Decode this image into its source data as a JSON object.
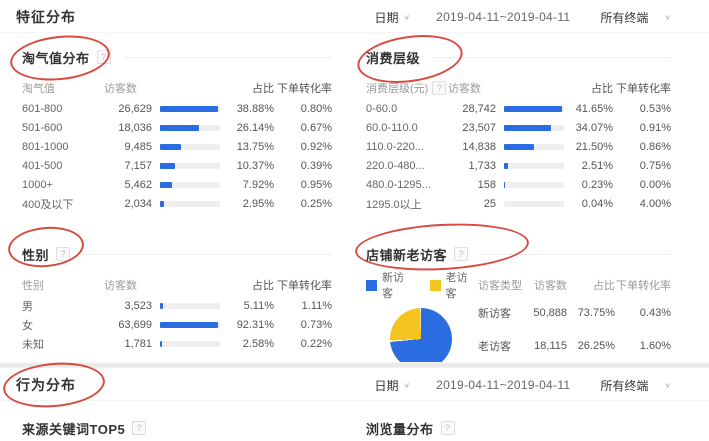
{
  "colors": {
    "blue": "#2a6de0",
    "yellow": "#f5c51f",
    "annotation_red": "#d3382b"
  },
  "feature": {
    "title": "特征分布",
    "date_label": "日期",
    "date_range": "2019-04-11~2019-04-11",
    "terminal": "所有终端",
    "panels": {
      "taoqi": {
        "title": "淘气值分布",
        "help": "?",
        "columns": {
          "c1": "淘气值",
          "c2": "访客数",
          "c3": "占比",
          "c4": "下单转化率"
        },
        "rows": [
          {
            "label": "601-800",
            "visitors": "26,629",
            "pct": "38.88%",
            "pct_value": 38.88,
            "conv": "0.80%"
          },
          {
            "label": "501-600",
            "visitors": "18,036",
            "pct": "26.14%",
            "pct_value": 26.14,
            "conv": "0.67%"
          },
          {
            "label": "801-1000",
            "visitors": "9,485",
            "pct": "13.75%",
            "pct_value": 13.75,
            "conv": "0.92%"
          },
          {
            "label": "401-500",
            "visitors": "7,157",
            "pct": "10.37%",
            "pct_value": 10.37,
            "conv": "0.39%"
          },
          {
            "label": "1000+",
            "visitors": "5,462",
            "pct": "7.92%",
            "pct_value": 7.92,
            "conv": "0.95%"
          },
          {
            "label": "400及以下",
            "visitors": "2,034",
            "pct": "2.95%",
            "pct_value": 2.95,
            "conv": "0.25%"
          }
        ]
      },
      "consume": {
        "title": "消费层级",
        "columns": {
          "c1": "消费层级(元)",
          "c1_help": "?",
          "c2": "访客数",
          "c3": "占比",
          "c4": "下单转化率"
        },
        "rows": [
          {
            "label": "0-60.0",
            "visitors": "28,742",
            "pct": "41.65%",
            "pct_value": 41.65,
            "conv": "0.53%"
          },
          {
            "label": "60.0-110.0",
            "visitors": "23,507",
            "pct": "34.07%",
            "pct_value": 34.07,
            "conv": "0.91%"
          },
          {
            "label": "110.0-220...",
            "visitors": "14,838",
            "pct": "21.50%",
            "pct_value": 21.5,
            "conv": "0.86%"
          },
          {
            "label": "220.0-480...",
            "visitors": "1,733",
            "pct": "2.51%",
            "pct_value": 2.51,
            "conv": "0.75%"
          },
          {
            "label": "480.0-1295...",
            "visitors": "158",
            "pct": "0.23%",
            "pct_value": 0.23,
            "conv": "0.00%"
          },
          {
            "label": "1295.0以上",
            "visitors": "25",
            "pct": "0.04%",
            "pct_value": 0.04,
            "conv": "4.00%"
          }
        ]
      },
      "gender": {
        "title": "性别",
        "help": "?",
        "columns": {
          "c1": "性别",
          "c2": "访客数",
          "c3": "占比",
          "c4": "下单转化率"
        },
        "rows": [
          {
            "label": "男",
            "visitors": "3,523",
            "pct": "5.11%",
            "pct_value": 5.11,
            "conv": "1.11%"
          },
          {
            "label": "女",
            "visitors": "63,699",
            "pct": "92.31%",
            "pct_value": 92.31,
            "conv": "0.73%"
          },
          {
            "label": "未知",
            "visitors": "1,781",
            "pct": "2.58%",
            "pct_value": 2.58,
            "conv": "0.22%"
          }
        ]
      },
      "visitor": {
        "title": "店铺新老访客",
        "help": "?",
        "legend": [
          {
            "label": "新访客",
            "color": "#2a6de0"
          },
          {
            "label": "老访客",
            "color": "#f5c51f"
          }
        ],
        "chart_data": {
          "type": "pie",
          "categories": [
            "新访客",
            "老访客"
          ],
          "values": [
            73.75,
            26.25
          ]
        },
        "pie": [
          73.75,
          26.25
        ],
        "columns": {
          "c1": "访客类型",
          "c2": "访客数",
          "c3": "占比",
          "c4": "下单转化率"
        },
        "rows": [
          {
            "label": "新访客",
            "visitors": "50,888",
            "pct": "73.75%",
            "conv": "0.43%"
          },
          {
            "label": "老访客",
            "visitors": "18,115",
            "pct": "26.25%",
            "conv": "1.60%"
          }
        ]
      }
    }
  },
  "behavior": {
    "title": "行为分布",
    "date_label": "日期",
    "date_range": "2019-04-11~2019-04-11",
    "terminal": "所有终端",
    "panels": {
      "keywords": {
        "title": "来源关键词TOP5",
        "help": "?"
      },
      "pageviews": {
        "title": "浏览量分布",
        "help": "?"
      }
    }
  }
}
